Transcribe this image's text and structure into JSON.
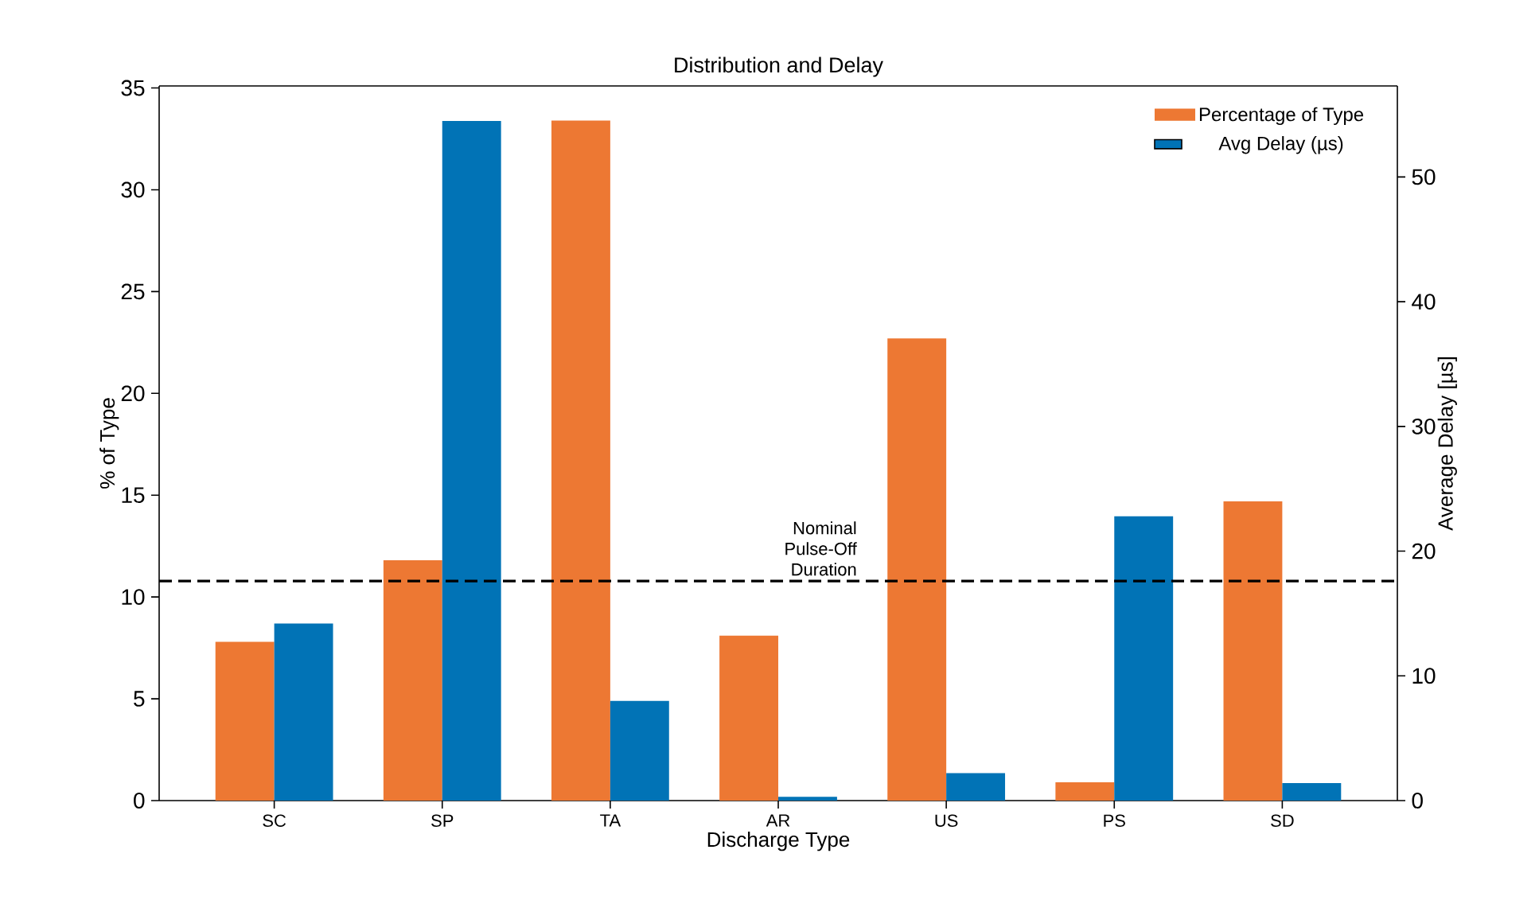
{
  "chart_data": {
    "type": "bar",
    "title": "Distribution and Delay",
    "xlabel": "Discharge Type",
    "ylabel": "% of Type",
    "y2label": "Average Delay [µs]",
    "categories": [
      "SC",
      "SP",
      "TA",
      "AR",
      "US",
      "PS",
      "SD"
    ],
    "series": [
      {
        "name": "Percentage of Type",
        "color": "#ed7833",
        "values": [
          7.8,
          11.8,
          33.4,
          8.1,
          22.7,
          0.9,
          14.7
        ]
      },
      {
        "name": "Avg Delay (µs)",
        "color": "#0173b6",
        "axis": "y2",
        "values": [
          14.2,
          54.5,
          8.0,
          0.3,
          2.2,
          22.8,
          1.4
        ]
      }
    ],
    "ylim": [
      0,
      35.1
    ],
    "yticks": [
      0,
      5,
      10,
      15,
      20,
      25,
      30,
      35
    ],
    "y2lim": [
      0,
      57.3
    ],
    "y2ticks": [
      0,
      10,
      20,
      30,
      40,
      50
    ],
    "ref_lines": [
      {
        "axis": "y2",
        "value": 17.6,
        "label": "Nominal Pulse-Off Duration",
        "color": "#000000",
        "line_style": "dashed"
      }
    ],
    "legend": "top right"
  }
}
